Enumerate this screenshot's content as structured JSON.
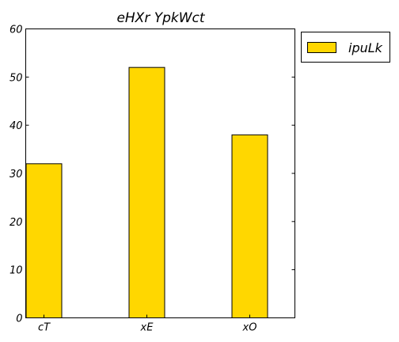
{
  "chart_data": {
    "type": "bar",
    "title": "eHXr YpkWct",
    "xlabel": "",
    "ylabel": "",
    "categories": [
      "cT",
      "xE",
      "xO"
    ],
    "series": [
      {
        "name": "ipuLk",
        "values": [
          32,
          52,
          38
        ],
        "color": "#ffd700"
      }
    ],
    "ylim": [
      0,
      60
    ],
    "yticks": [
      0,
      10,
      20,
      30,
      40,
      50,
      60
    ],
    "grid": false,
    "legend_position": "top-right-outside"
  }
}
